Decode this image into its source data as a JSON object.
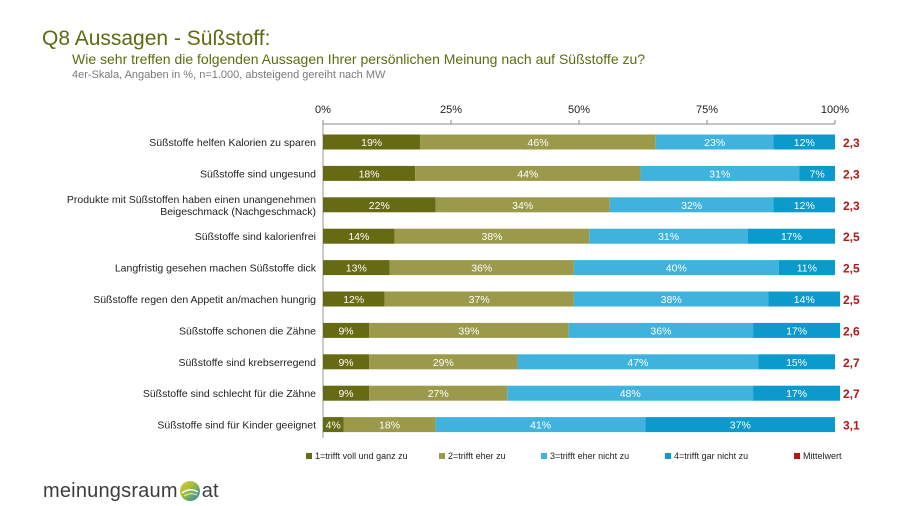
{
  "header": {
    "title": "Q8 Aussagen - Süßstoff:",
    "subtitle": "Wie sehr treffen die folgenden Aussagen Ihrer persönlichen Meinung nach auf Süßstoffe zu?",
    "note": "4er-Skala, Angaben in %, n=1.000, absteigend gereiht nach MW"
  },
  "logo": {
    "left": "meinungsraum",
    "right": "at",
    "icon": "globe-icon"
  },
  "chart_data": {
    "type": "bar",
    "orientation": "horizontal",
    "stacked": true,
    "percent_axis": {
      "ticks": [
        "0%",
        "25%",
        "50%",
        "75%",
        "100%"
      ],
      "range": [
        0,
        100
      ],
      "position": "top",
      "grid": false
    },
    "categories": [
      "Süßstoffe helfen Kalorien zu sparen",
      "Süßstoffe sind ungesund",
      "Produkte mit Süßstoffen haben einen unangenehmen Beigeschmack (Nachgeschmack)",
      "Süßstoffe sind kalorienfrei",
      "Langfristig gesehen machen Süßstoffe dick",
      "Süßstoffe regen den Appetit an/machen hungrig",
      "Süßstoffe schonen die Zähne",
      "Süßstoffe sind krebserregend",
      "Süßstoffe sind schlecht für die Zähne",
      "Süßstoffe sind für Kinder geeignet"
    ],
    "series": [
      {
        "name": "1=trifft voll und ganz zu",
        "color": "#666a12",
        "values": [
          19,
          18,
          22,
          14,
          13,
          12,
          9,
          9,
          9,
          4
        ]
      },
      {
        "name": "2=trifft eher zu",
        "color": "#9a9a4a",
        "values": [
          46,
          44,
          34,
          38,
          36,
          37,
          39,
          29,
          27,
          18
        ]
      },
      {
        "name": "3=trifft eher nicht zu",
        "color": "#3fb3dd",
        "values": [
          23,
          31,
          32,
          31,
          40,
          38,
          36,
          47,
          48,
          41
        ]
      },
      {
        "name": "4=trifft gar nicht zu",
        "color": "#0b9acb",
        "values": [
          12,
          7,
          12,
          17,
          11,
          14,
          17,
          15,
          17,
          37
        ]
      }
    ],
    "mean": {
      "name": "Mittelwert",
      "color": "#b01818",
      "values": [
        "2,3",
        "2,3",
        "2,3",
        "2,5",
        "2,5",
        "2,5",
        "2,6",
        "2,7",
        "2,7",
        "3,1"
      ]
    },
    "legend_position": "bottom"
  }
}
